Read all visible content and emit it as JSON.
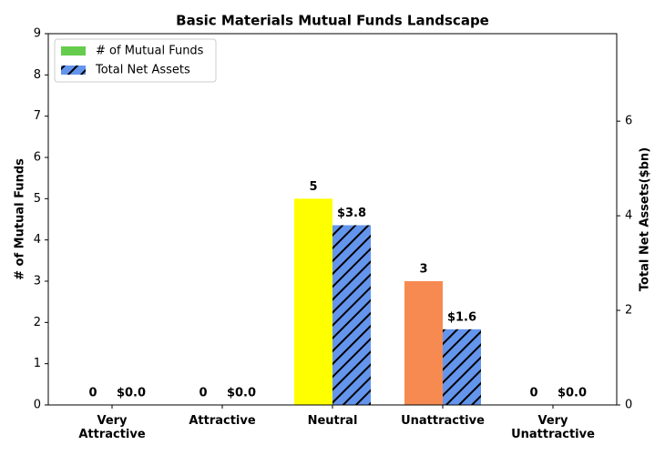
{
  "chart_data": {
    "type": "bar",
    "title": "Basic Materials Mutual Funds Landscape",
    "categories": [
      "Very\nAttractive",
      "Attractive",
      "Neutral",
      "Unattractive",
      "Very\nUnattractive"
    ],
    "series": [
      {
        "name": "# of Mutual Funds",
        "color": "#66cc4d",
        "bar_colors": [
          "#1a9641",
          "#66cc4d",
          "#ffff00",
          "#f78a50",
          "#e03020"
        ],
        "values": [
          0,
          0,
          5,
          3,
          0
        ]
      },
      {
        "name": "Total Net Assets",
        "color": "#6495ed",
        "hatch": true,
        "axis": "y2",
        "values": [
          0,
          0,
          3.8,
          1.6,
          0
        ],
        "value_labels": [
          "$0.0",
          "$0.0",
          "$3.8",
          "$1.6",
          "$0.0"
        ]
      }
    ],
    "ylabel": "# of Mutual Funds",
    "y2label": "Total Net Assets($bn)",
    "ylim": [
      0,
      9
    ],
    "yticks": [
      0,
      1,
      2,
      3,
      4,
      5,
      6,
      7,
      8,
      9
    ],
    "y2lim": [
      0,
      7.85
    ],
    "y2ticks": [
      0,
      2,
      4,
      6
    ],
    "legend": "upper-left"
  }
}
